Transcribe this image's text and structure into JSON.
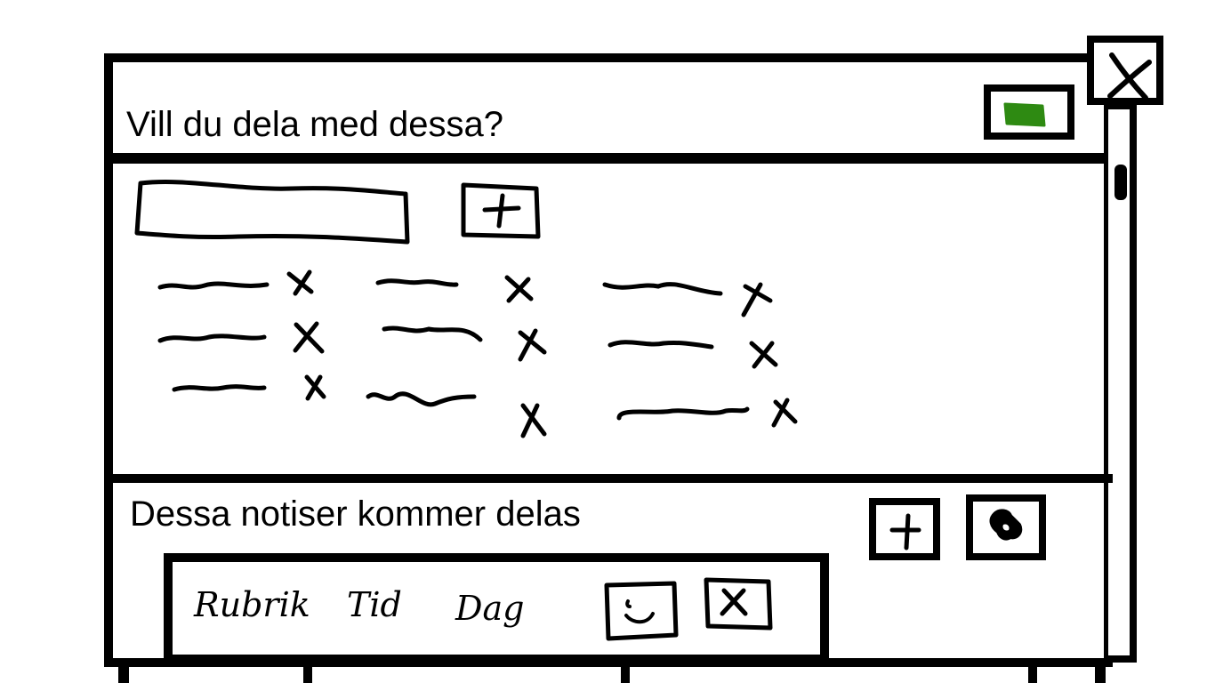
{
  "dialog": {
    "title": "Vill du dela med dessa?",
    "confirm_color": "#2e8a12",
    "close_icon": "close-icon"
  },
  "recipients": {
    "add_icon": "plus-icon",
    "remove_icon": "remove-x-icon"
  },
  "notes": {
    "heading": "Dessa notiser kommer delas",
    "add_icon": "plus-icon",
    "tag_icon": "tag-icon",
    "table": {
      "columns": [
        "Rubrik",
        "Tid",
        "Dag"
      ],
      "row_icons": [
        "smiley-icon",
        "delete-x-icon"
      ]
    }
  }
}
